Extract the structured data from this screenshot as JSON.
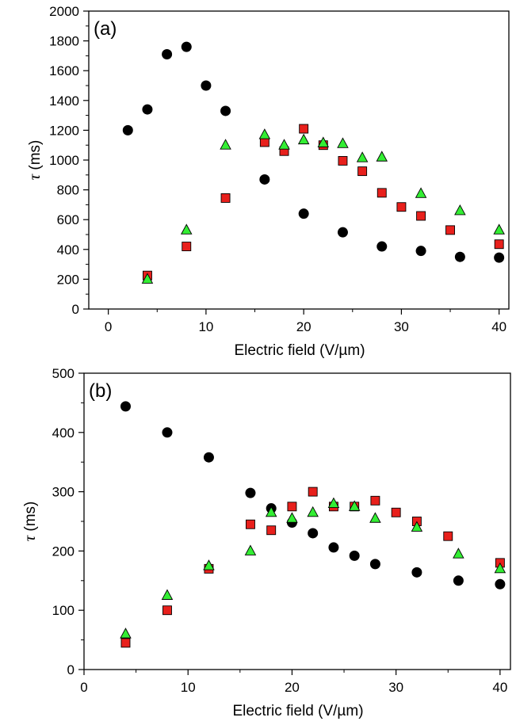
{
  "chart_data": [
    {
      "panel_label": "(a)",
      "type": "scatter",
      "xlabel": "Electric field (V/µm)",
      "ylabel_symbol": "τ",
      "ylabel_unit": " (ms)",
      "xlim": [
        -2,
        41
      ],
      "ylim": [
        0,
        2000
      ],
      "xticks": [
        0,
        10,
        20,
        30,
        40
      ],
      "yticks": [
        0,
        200,
        400,
        600,
        800,
        1000,
        1200,
        1400,
        1600,
        1800,
        2000
      ],
      "grid": false,
      "legend": "none",
      "series": [
        {
          "marker": "circle",
          "color": "#000000",
          "x": [
            2,
            4,
            6,
            8,
            10,
            12,
            16,
            20,
            24,
            28,
            32,
            36,
            40
          ],
          "y": [
            1200,
            1340,
            1710,
            1760,
            1500,
            1330,
            870,
            640,
            515,
            420,
            390,
            350,
            345
          ]
        },
        {
          "marker": "square",
          "color": "#e8201c",
          "x": [
            4,
            8,
            12,
            16,
            18,
            20,
            22,
            24,
            26,
            28,
            30,
            32,
            35,
            40
          ],
          "y": [
            225,
            420,
            745,
            1120,
            1060,
            1210,
            1100,
            995,
            925,
            780,
            685,
            625,
            530,
            435
          ]
        },
        {
          "marker": "triangle",
          "color": "#33ee33",
          "x": [
            4,
            8,
            12,
            16,
            18,
            20,
            22,
            24,
            26,
            28,
            32,
            36,
            40
          ],
          "y": [
            200,
            530,
            1100,
            1170,
            1100,
            1135,
            1115,
            1110,
            1015,
            1020,
            775,
            660,
            530
          ]
        }
      ]
    },
    {
      "panel_label": "(b)",
      "type": "scatter",
      "xlabel": "Electric field (V/µm)",
      "ylabel_symbol": "τ",
      "ylabel_unit": " (ms)",
      "xlim": [
        0,
        41
      ],
      "ylim": [
        0,
        500
      ],
      "xticks": [
        0,
        10,
        20,
        30,
        40
      ],
      "yticks": [
        0,
        100,
        200,
        300,
        400,
        500
      ],
      "grid": false,
      "legend": "none",
      "series": [
        {
          "marker": "circle",
          "color": "#000000",
          "x": [
            4,
            8,
            12,
            16,
            18,
            20,
            22,
            24,
            26,
            28,
            32,
            36,
            40
          ],
          "y": [
            444,
            400,
            358,
            298,
            272,
            248,
            230,
            206,
            192,
            178,
            164,
            150,
            144
          ]
        },
        {
          "marker": "square",
          "color": "#e8201c",
          "x": [
            4,
            8,
            12,
            16,
            18,
            20,
            22,
            24,
            26,
            28,
            30,
            32,
            35,
            40
          ],
          "y": [
            45,
            100,
            170,
            245,
            235,
            275,
            300,
            275,
            275,
            285,
            265,
            250,
            225,
            180
          ]
        },
        {
          "marker": "triangle",
          "color": "#33ee33",
          "x": [
            4,
            8,
            12,
            16,
            18,
            20,
            22,
            24,
            26,
            28,
            32,
            36,
            40
          ],
          "y": [
            60,
            125,
            175,
            200,
            265,
            255,
            265,
            280,
            275,
            255,
            240,
            195,
            170
          ]
        }
      ]
    }
  ]
}
